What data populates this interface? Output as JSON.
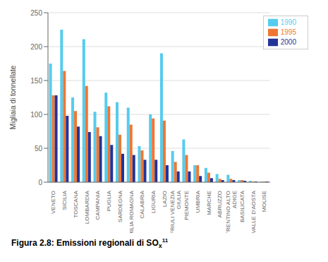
{
  "chart_data": {
    "type": "bar",
    "title": "Figura 2.8: Emissioni regionali di SO",
    "annotations": [
      "x",
      "11"
    ],
    "categories": [
      "VENETO",
      "SICILIA",
      "TOSCANA",
      "LOMBARDIA",
      "CAMPANIA",
      "PUGLIA",
      "SARDEGNA",
      "EMILIA ROMAGNA",
      "CALABRIA",
      "LIGURIA",
      "LAZIO",
      "FRIULI VENEZIA\nGIULIA",
      "PIEMONTE",
      "UMBRIA",
      "MARCHE",
      "ABRUZZO",
      "TRENTINO ALTO\nADIGE",
      "BASILICATA",
      "VALLE D'AOSTA",
      "MOLISE"
    ],
    "series": [
      {
        "name": "1990",
        "color": "#55CCEE",
        "values": [
          175,
          225,
          125,
          211,
          104,
          132,
          118,
          110,
          53,
          100,
          190,
          46,
          63,
          25,
          21,
          12,
          11,
          3,
          2,
          1
        ]
      },
      {
        "name": "1995",
        "color": "#EE7733",
        "values": [
          128,
          164,
          105,
          142,
          81,
          112,
          70,
          85,
          47,
          94,
          91,
          30,
          40,
          25,
          14,
          5,
          5,
          3,
          1,
          1
        ]
      },
      {
        "name": "2000",
        "color": "#223399",
        "values": [
          128,
          98,
          82,
          74,
          68,
          55,
          42,
          40,
          33,
          33,
          25,
          16,
          16,
          9,
          6,
          3,
          3,
          2,
          1,
          1
        ]
      }
    ],
    "y_label": "Migliaia di tonnellate",
    "ylim": [
      0,
      250
    ],
    "yticks": [
      0,
      50,
      100,
      150,
      200,
      250
    ],
    "grid": true,
    "legend": "upper right"
  }
}
